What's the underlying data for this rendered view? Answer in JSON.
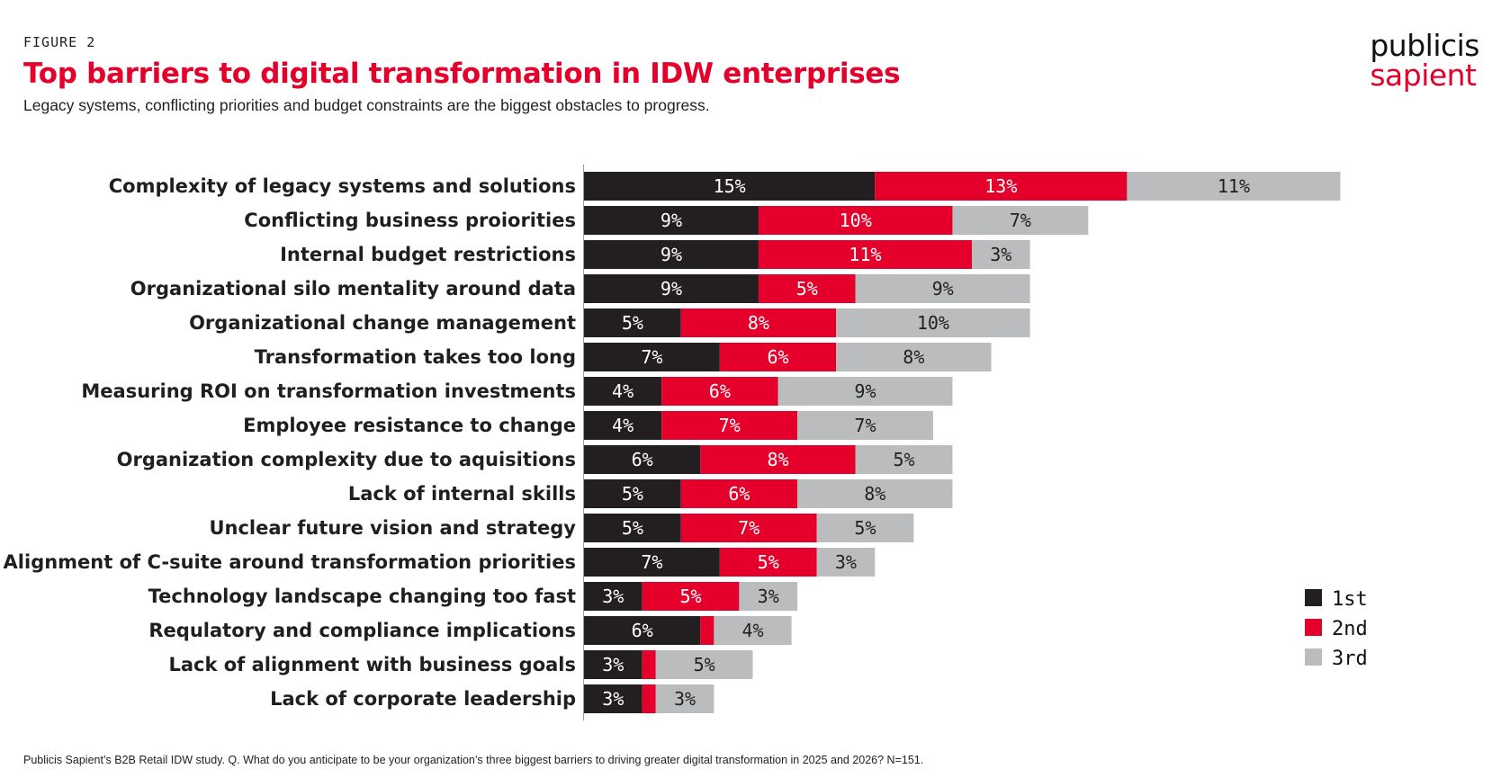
{
  "header": {
    "figure_label": "FIGURE 2",
    "title": "Top barriers to digital transformation in IDW enterprises",
    "subtitle": "Legacy systems, conflicting priorities and budget constraints are the biggest obstacles to progress."
  },
  "logo": {
    "line1": "publicis",
    "line2": "sapient"
  },
  "footer": {
    "note": "Publicis Sapient’s B2B Retail IDW study. Q. What do you anticipate to be your organization’s three biggest barriers to driving greater digital transformation in 2025 and 2026? N=151."
  },
  "colors": {
    "first": "#231f20",
    "second": "#e4002b",
    "third": "#bbbcbe",
    "accent": "#e4002b"
  },
  "chart_data": {
    "type": "bar",
    "orientation": "horizontal",
    "stacked": true,
    "title": "Top barriers to digital transformation in IDW enterprises",
    "xlabel": "",
    "ylabel": "",
    "unit": "%",
    "xlim": [
      0,
      39
    ],
    "grid": false,
    "legend_position": "bottom-right",
    "categories": [
      "Complexity of legacy systems and solutions",
      "Conflicting business proiorities",
      "Internal budget restrictions",
      "Organizational silo mentality around data",
      "Organizational change management",
      "Transformation takes too long",
      "Measuring ROI on transformation investments",
      "Employee resistance to change",
      "Organization complexity due to aquisitions",
      "Lack of internal skills",
      "Unclear future vision and strategy",
      "Alignment of C-suite around transformation priorities",
      "Technology landscape changing too fast",
      "Requlatory and compliance implications",
      "Lack of alignment with business goals",
      "Lack of corporate leadership"
    ],
    "series": [
      {
        "name": "1st",
        "color": "#231f20",
        "label_color": "#ffffff",
        "values": [
          15,
          9,
          9,
          9,
          5,
          7,
          4,
          4,
          6,
          5,
          5,
          7,
          3,
          6,
          3,
          3
        ],
        "labels": [
          "15%",
          "9%",
          "9%",
          "9%",
          "5%",
          "7%",
          "4%",
          "4%",
          "6%",
          "5%",
          "5%",
          "7%",
          "3%",
          "6%",
          "3%",
          "3%"
        ]
      },
      {
        "name": "2nd",
        "color": "#e4002b",
        "label_color": "#ffffff",
        "values": [
          13,
          10,
          11,
          5,
          8,
          6,
          6,
          7,
          8,
          6,
          7,
          5,
          5,
          0.7,
          0.7,
          0.7
        ],
        "labels": [
          "13%",
          "10%",
          "11%",
          "5%",
          "8%",
          "6%",
          "6%",
          "7%",
          "8%",
          "6%",
          "7%",
          "5%",
          "5%",
          "",
          "",
          ""
        ]
      },
      {
        "name": "3rd",
        "color": "#bbbcbe",
        "label_color": "#231f20",
        "values": [
          11,
          7,
          3,
          9,
          10,
          8,
          9,
          7,
          5,
          8,
          5,
          3,
          3,
          4,
          5,
          3
        ],
        "labels": [
          "11%",
          "7%",
          "3%",
          "9%",
          "10%",
          "8%",
          "9%",
          "7%",
          "5%",
          "8%",
          "5%",
          "3%",
          "3%",
          "4%",
          "5%",
          "3%"
        ]
      }
    ]
  }
}
